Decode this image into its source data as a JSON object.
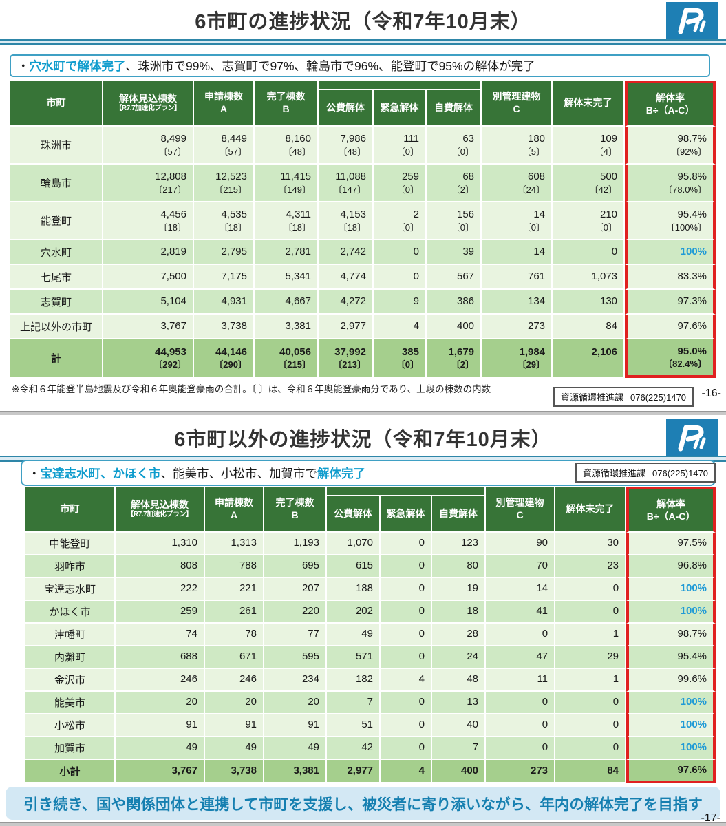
{
  "colors": {
    "header_green": "#377437",
    "row_light": "#e9f4e0",
    "row_medium": "#cfe9c4",
    "total_row_green": "#a5cf8d",
    "red_highlight_box": "#e02020",
    "rate_100_blue": "#1f9ad6",
    "subtitle_highlight_blue": "#0f9ccd",
    "banner_background": "#d3e8f4",
    "banner_text": "#157fb0",
    "logo_blue": "#1e7fb4",
    "title_rule_teal": "#2e86a8"
  },
  "slide1": {
    "title": "6市町の進捗状況（令和7年10月末）",
    "subtitle": {
      "seg1": "・",
      "seg2": "穴水町で解体完了",
      "seg3": "、珠洲市で99%、志賀町で97%、輪島市で96%、能登町で95%の解体が完了"
    },
    "footnote": "※令和６年能登半島地震及び令和６年奥能登豪雨の合計。〔 〕は、令和６年奥能登豪雨分であり、上段の棟数の内数",
    "contact": {
      "department": "資源循環推進課",
      "phone": "076(225)1470"
    },
    "page_number": "-16-",
    "table": {
      "header_main": [
        [
          "市町"
        ],
        [
          "解体見込棟数",
          "【R7.7加速化プラン】"
        ],
        [
          "申請棟数",
          "A"
        ],
        [
          "完了棟数",
          "B"
        ]
      ],
      "header_breakdown": [
        "公費解体",
        "緊急解体",
        "自費解体"
      ],
      "header_tail": [
        [
          "別管理建物",
          "C"
        ],
        [
          "解体未完了"
        ]
      ],
      "header_rate": [
        "解体率",
        "B÷（A-C）"
      ],
      "rows": [
        {
          "name": "珠洲市",
          "values": [
            "8,499",
            "8,449",
            "8,160",
            "7,986",
            "111",
            "63",
            "180",
            "109",
            "98.7%"
          ],
          "brackets": [
            "〔57〕",
            "〔57〕",
            "〔48〕",
            "〔48〕",
            "〔0〕",
            "〔0〕",
            "〔5〕",
            "〔4〕",
            "〔92%〕"
          ],
          "blue_rate": false
        },
        {
          "name": "輪島市",
          "values": [
            "12,808",
            "12,523",
            "11,415",
            "11,088",
            "259",
            "68",
            "608",
            "500",
            "95.8%"
          ],
          "brackets": [
            "〔217〕",
            "〔215〕",
            "〔149〕",
            "〔147〕",
            "〔0〕",
            "〔2〕",
            "〔24〕",
            "〔42〕",
            "〔78.0%〕"
          ],
          "blue_rate": false
        },
        {
          "name": "能登町",
          "values": [
            "4,456",
            "4,535",
            "4,311",
            "4,153",
            "2",
            "156",
            "14",
            "210",
            "95.4%"
          ],
          "brackets": [
            "〔18〕",
            "〔18〕",
            "〔18〕",
            "〔18〕",
            "〔0〕",
            "〔0〕",
            "〔0〕",
            "〔0〕",
            "〔100%〕"
          ],
          "blue_rate": false
        },
        {
          "name": "穴水町",
          "values": [
            "2,819",
            "2,795",
            "2,781",
            "2,742",
            "0",
            "39",
            "14",
            "0",
            "100%"
          ],
          "brackets": null,
          "blue_rate": true
        },
        {
          "name": "七尾市",
          "values": [
            "7,500",
            "7,175",
            "5,341",
            "4,774",
            "0",
            "567",
            "761",
            "1,073",
            "83.3%"
          ],
          "brackets": null,
          "blue_rate": false
        },
        {
          "name": "志賀町",
          "values": [
            "5,104",
            "4,931",
            "4,667",
            "4,272",
            "9",
            "386",
            "134",
            "130",
            "97.3%"
          ],
          "brackets": null,
          "blue_rate": false
        },
        {
          "name": "上記以外の市町",
          "values": [
            "3,767",
            "3,738",
            "3,381",
            "2,977",
            "4",
            "400",
            "273",
            "84",
            "97.6%"
          ],
          "brackets": null,
          "blue_rate": false
        }
      ],
      "total": {
        "name": "計",
        "values": [
          "44,953",
          "44,146",
          "40,056",
          "37,992",
          "385",
          "1,679",
          "1,984",
          "2,106",
          "95.0%"
        ],
        "brackets": [
          "〔292〕",
          "〔290〕",
          "〔215〕",
          "〔213〕",
          "〔0〕",
          "〔2〕",
          "〔29〕",
          "",
          "〔82.4%〕"
        ],
        "blue_rate": false
      }
    }
  },
  "slide2": {
    "title": "6市町以外の進捗状況（令和7年10月末）",
    "subtitle": {
      "seg1": "・",
      "seg2": "宝達志水町、かほく市",
      "seg3": "、能美市、小松市、加賀市で",
      "seg4": "解体完了"
    },
    "contact": {
      "department": "資源循環推進課",
      "phone": "076(225)1470"
    },
    "banner": "引き続き、国や関係団体と連携して市町を支援し、被災者に寄り添いながら、年内の解体完了を目指す",
    "page_number": "-17-",
    "table": {
      "header_main": [
        [
          "市町"
        ],
        [
          "解体見込棟数",
          "【R7.7加速化プラン】"
        ],
        [
          "申請棟数",
          "A"
        ],
        [
          "完了棟数",
          "B"
        ]
      ],
      "header_breakdown": [
        "公費解体",
        "緊急解体",
        "自費解体"
      ],
      "header_tail": [
        [
          "別管理建物",
          "C"
        ],
        [
          "解体未完了"
        ]
      ],
      "header_rate": [
        "解体率",
        "B÷（A-C）"
      ],
      "rows": [
        {
          "name": "中能登町",
          "values": [
            "1,310",
            "1,313",
            "1,193",
            "1,070",
            "0",
            "123",
            "90",
            "30",
            "97.5%"
          ],
          "brackets": null,
          "blue_rate": false
        },
        {
          "name": "羽咋市",
          "values": [
            "808",
            "788",
            "695",
            "615",
            "0",
            "80",
            "70",
            "23",
            "96.8%"
          ],
          "brackets": null,
          "blue_rate": false
        },
        {
          "name": "宝達志水町",
          "values": [
            "222",
            "221",
            "207",
            "188",
            "0",
            "19",
            "14",
            "0",
            "100%"
          ],
          "brackets": null,
          "blue_rate": true
        },
        {
          "name": "かほく市",
          "values": [
            "259",
            "261",
            "220",
            "202",
            "0",
            "18",
            "41",
            "0",
            "100%"
          ],
          "brackets": null,
          "blue_rate": true
        },
        {
          "name": "津幡町",
          "values": [
            "74",
            "78",
            "77",
            "49",
            "0",
            "28",
            "0",
            "1",
            "98.7%"
          ],
          "brackets": null,
          "blue_rate": false
        },
        {
          "name": "内灘町",
          "values": [
            "688",
            "671",
            "595",
            "571",
            "0",
            "24",
            "47",
            "29",
            "95.4%"
          ],
          "brackets": null,
          "blue_rate": false
        },
        {
          "name": "金沢市",
          "values": [
            "246",
            "246",
            "234",
            "182",
            "4",
            "48",
            "11",
            "1",
            "99.6%"
          ],
          "brackets": null,
          "blue_rate": false
        },
        {
          "name": "能美市",
          "values": [
            "20",
            "20",
            "20",
            "7",
            "0",
            "13",
            "0",
            "0",
            "100%"
          ],
          "brackets": null,
          "blue_rate": true
        },
        {
          "name": "小松市",
          "values": [
            "91",
            "91",
            "91",
            "51",
            "0",
            "40",
            "0",
            "0",
            "100%"
          ],
          "brackets": null,
          "blue_rate": true
        },
        {
          "name": "加賀市",
          "values": [
            "49",
            "49",
            "49",
            "42",
            "0",
            "7",
            "0",
            "0",
            "100%"
          ],
          "brackets": null,
          "blue_rate": true
        }
      ],
      "total": {
        "name": "小計",
        "values": [
          "3,767",
          "3,738",
          "3,381",
          "2,977",
          "4",
          "400",
          "273",
          "84",
          "97.6%"
        ],
        "brackets": null,
        "blue_rate": false
      }
    }
  }
}
